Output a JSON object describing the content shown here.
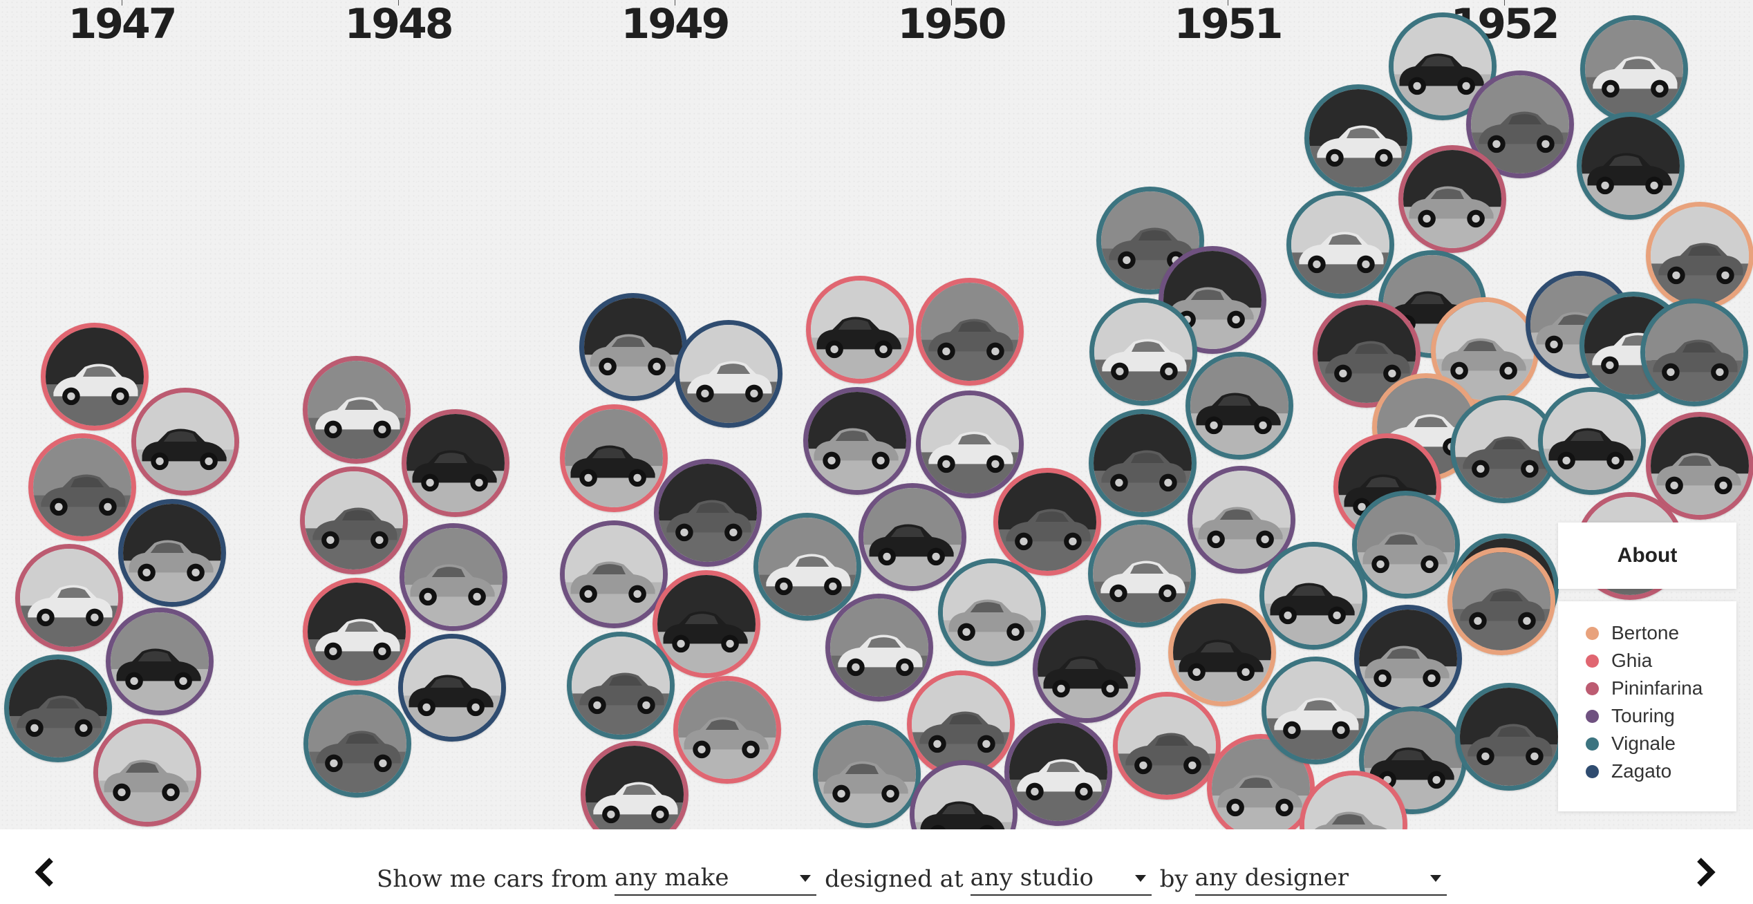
{
  "years": [
    "1947",
    "1948",
    "1949",
    "1950",
    "1951",
    "1952"
  ],
  "filter": {
    "prefix": "Show me cars from",
    "make_value": "any make",
    "mid": "designed at",
    "studio_value": "any studio",
    "by": "by",
    "designer_value": "any designer"
  },
  "about_label": "About",
  "studios": [
    {
      "name": "Bertone",
      "color": "#e8a27c"
    },
    {
      "name": "Ghia",
      "color": "#e06671"
    },
    {
      "name": "Pininfarina",
      "color": "#bc5b71"
    },
    {
      "name": "Touring",
      "color": "#6f5180"
    },
    {
      "name": "Vignale",
      "color": "#3c7480"
    },
    {
      "name": "Zagato",
      "color": "#2f4c70"
    }
  ],
  "icons": {
    "prev": "chevron-left-icon",
    "next": "chevron-right-icon"
  }
}
